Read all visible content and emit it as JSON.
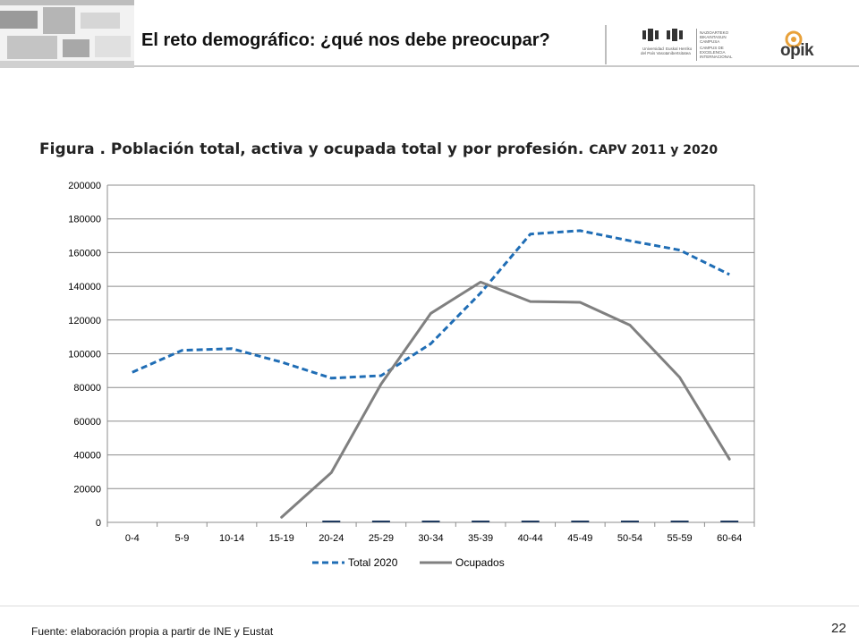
{
  "header": {
    "title": "El reto demográfico: ¿qué nos debe preocupar?",
    "logos": {
      "upv": {
        "line1": "Universidad",
        "line2": "del País Vasco",
        "line3": "Euskal Herriko",
        "line4": "Unibertsitatea"
      },
      "campus": {
        "lines": [
          "NAZIOARTEKO",
          "BIKAINTASUN",
          "CAMPUSA",
          "CAMPUS DE",
          "EXCELENCIA",
          "INTERNACIONAL"
        ]
      },
      "opik": {
        "text": "opik",
        "accent_color": "#e8a13a"
      }
    }
  },
  "figure": {
    "title": "Figura . Población total, activa y ocupada total y por profesión.",
    "subtitle": "CAPV 2011 y 2020"
  },
  "chart_data": {
    "type": "line",
    "categories": [
      "0-4",
      "5-9",
      "10-14",
      "15-19",
      "20-24",
      "25-29",
      "30-34",
      "35-39",
      "40-44",
      "45-49",
      "50-54",
      "55-59",
      "60-64"
    ],
    "ylim": [
      0,
      200000
    ],
    "yticks": [
      0,
      20000,
      40000,
      60000,
      80000,
      100000,
      120000,
      140000,
      160000,
      180000,
      200000
    ],
    "grid": true,
    "legend_position": "bottom",
    "series": [
      {
        "name": "Total 2020",
        "style": "dashed",
        "color": "#1f6db5",
        "values": [
          89000,
          102000,
          103000,
          95000,
          85500,
          87000,
          106000,
          136000,
          171000,
          173000,
          167000,
          161500,
          147000
        ]
      },
      {
        "name": "Ocupados",
        "style": "solid",
        "color": "#808080",
        "values": [
          null,
          null,
          null,
          3000,
          29500,
          82000,
          124000,
          142500,
          131000,
          130500,
          117000,
          86000,
          37500
        ]
      },
      {
        "name": "",
        "style": "solid",
        "color": "#1f3a5f",
        "values": [
          null,
          null,
          null,
          null,
          0,
          0,
          0,
          0,
          0,
          0,
          0,
          0,
          0
        ]
      }
    ]
  },
  "footer": {
    "source": "Fuente: elaboración propia a partir de INE y Eustat",
    "page_number": "22"
  }
}
